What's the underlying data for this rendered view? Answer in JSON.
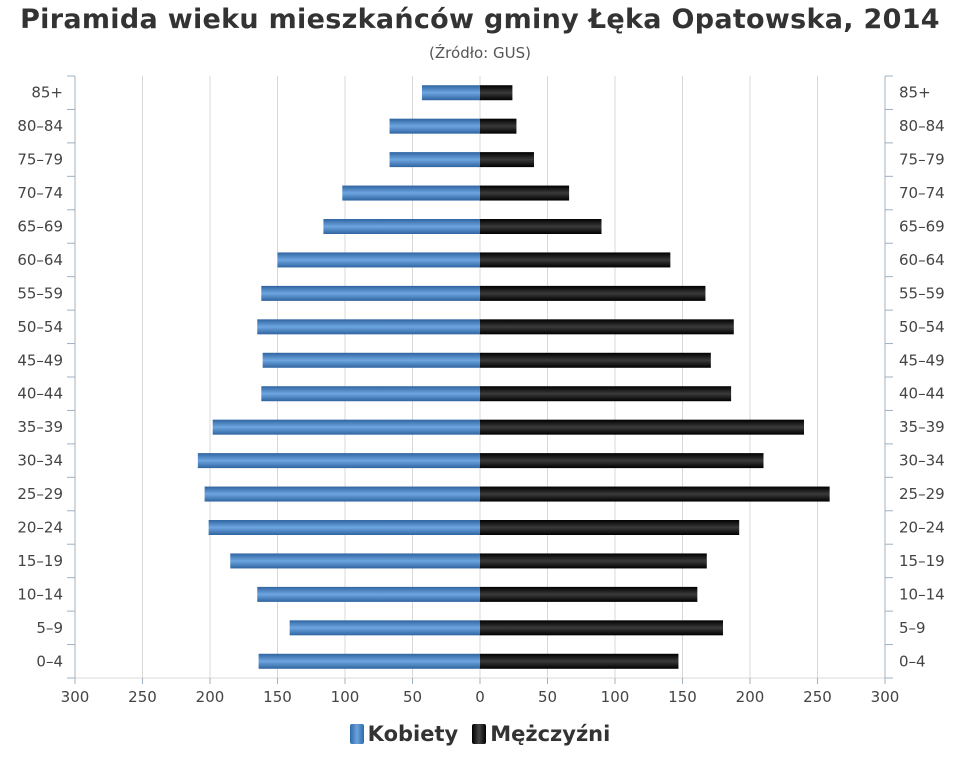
{
  "colors": {
    "kobiety": "#3d7cc0",
    "mezczyzni": "#111111",
    "grid": "#d8d8d8",
    "axis": "#a0b0c0",
    "text": "#333333"
  },
  "chart_data": {
    "type": "bar",
    "orientation": "horizontal-population-pyramid",
    "title": "Piramida wieku mieszkańców gminy Łęka Opatowska, 2014",
    "subtitle": "(Źródło: GUS)",
    "categories": [
      "85+",
      "80–84",
      "75–79",
      "70–74",
      "65–69",
      "60–64",
      "55–59",
      "50–54",
      "45–49",
      "40–44",
      "35–39",
      "30–34",
      "25–29",
      "20–24",
      "15–19",
      "10–14",
      "5–9",
      "0–4"
    ],
    "series": [
      {
        "name": "Kobiety",
        "values": [
          43,
          67,
          67,
          102,
          116,
          150,
          162,
          165,
          161,
          162,
          198,
          209,
          204,
          201,
          185,
          165,
          141,
          164
        ]
      },
      {
        "name": "Mężczyźni",
        "values": [
          24,
          27,
          40,
          66,
          90,
          141,
          167,
          188,
          171,
          186,
          240,
          210,
          259,
          192,
          168,
          161,
          180,
          147
        ]
      }
    ],
    "xlim": [
      -300,
      300
    ],
    "xticks": [
      "300",
      "250",
      "200",
      "150",
      "100",
      "50",
      "0",
      "50",
      "100",
      "150",
      "200",
      "250",
      "300"
    ],
    "xtick_values": [
      -300,
      -250,
      -200,
      -150,
      -100,
      -50,
      0,
      50,
      100,
      150,
      200,
      250,
      300
    ],
    "grid": true,
    "legend": "bottom-center"
  }
}
